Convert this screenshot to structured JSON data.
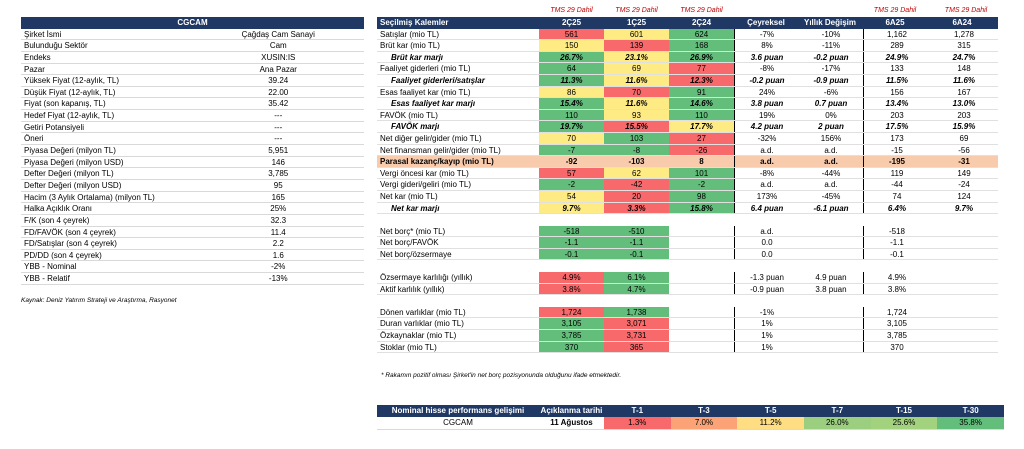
{
  "left": {
    "title": "CGCAM",
    "rows": [
      [
        "Şirket İsmi",
        "Çağdaş Cam Sanayi"
      ],
      [
        "Bulunduğu Sektör",
        "Cam"
      ],
      [
        "Endeks",
        "XUSIN:IS"
      ],
      [
        "Pazar",
        "Ana Pazar"
      ],
      [
        "Yüksek Fiyat (12-aylık, TL)",
        "39.24"
      ],
      [
        "Düşük Fiyat (12-aylık, TL)",
        "22.00"
      ],
      [
        "Fiyat (son kapanış, TL)",
        "35.42"
      ],
      [
        "Hedef Fiyat (12-aylık, TL)",
        "---"
      ],
      [
        "Getiri Potansiyeli",
        "---"
      ],
      [
        "Öneri",
        "---"
      ],
      [
        "Piyasa Değeri (milyon TL)",
        "5,951"
      ],
      [
        "Piyasa Değeri (milyon USD)",
        "146"
      ],
      [
        "Defter Değeri (milyon TL)",
        "3,785"
      ],
      [
        "Defter Değeri (milyon USD)",
        "95"
      ],
      [
        "Hacim (3 Aylık Ortalama) (milyon TL)",
        "165"
      ],
      [
        "Halka Açıklık Oranı",
        "25%"
      ],
      [
        "F/K (son 4 çeyrek)",
        "32.3"
      ],
      [
        "FD/FAVÖK (son 4 çeyrek)",
        "11.4"
      ],
      [
        "FD/Satışlar (son 4 çeyrek)",
        "2.2"
      ],
      [
        "PD/DD (son 4 çeyrek)",
        "1.6"
      ],
      [
        "YBB - Nominal",
        "-2%"
      ],
      [
        "YBB - Relatif",
        "-13%"
      ]
    ],
    "source": "Kaynak: Deniz Yatırım Strateji ve Araştırma, Rasyonet"
  },
  "tms_label": "TMS 29 Dahil",
  "right": {
    "headers": [
      "Seçilmiş Kalemler",
      "2Ç25",
      "1Ç25",
      "2Ç24",
      "Çeyreksel Değişim",
      "Yıllık Değişim",
      "6A25",
      "6A24"
    ],
    "rows": [
      {
        "c": [
          "Satışlar (mio TL)",
          "561",
          "601",
          "624",
          "-7%",
          "-10%",
          "1,162",
          "1,278"
        ],
        "col": [
          "rd",
          "y",
          "g"
        ]
      },
      {
        "c": [
          "Brüt kar (mio TL)",
          "150",
          "139",
          "168",
          "8%",
          "-11%",
          "289",
          "315"
        ],
        "col": [
          "y",
          "rd",
          "g"
        ]
      },
      {
        "c": [
          "Brüt kar marjı",
          "26.7%",
          "23.1%",
          "26.9%",
          "3.6 puan",
          "-0.2 puan",
          "24.9%",
          "24.7%"
        ],
        "col": [
          "g",
          "y",
          "g"
        ],
        "style": "bi-ind"
      },
      {
        "c": [
          "Faaliyet giderleri (mio TL)",
          "64",
          "69",
          "77",
          "-8%",
          "-17%",
          "133",
          "148"
        ],
        "col": [
          "g",
          "y",
          "rd"
        ]
      },
      {
        "c": [
          "Faaliyet giderleri/satışlar",
          "11.3%",
          "11.6%",
          "12.3%",
          "-0.2 puan",
          "-0.9 puan",
          "11.5%",
          "11.6%"
        ],
        "col": [
          "g",
          "y",
          "rd"
        ],
        "style": "bi-ind"
      },
      {
        "c": [
          "Esas faaliyet kar (mio TL)",
          "86",
          "70",
          "91",
          "24%",
          "-6%",
          "156",
          "167"
        ],
        "col": [
          "y",
          "rd",
          "g"
        ]
      },
      {
        "c": [
          "Esas faaliyet kar marjı",
          "15.4%",
          "11.6%",
          "14.6%",
          "3.8 puan",
          "0.7 puan",
          "13.4%",
          "13.0%"
        ],
        "col": [
          "g",
          "y",
          "g"
        ],
        "style": "bi-ind"
      },
      {
        "c": [
          "FAVÖK (mio TL)",
          "110",
          "93",
          "110",
          "19%",
          "0%",
          "203",
          "203"
        ],
        "col": [
          "g",
          "y",
          "g"
        ]
      },
      {
        "c": [
          "FAVÖK marjı",
          "19.7%",
          "15.5%",
          "17.7%",
          "4.2 puan",
          "2 puan",
          "17.5%",
          "15.9%"
        ],
        "col": [
          "g",
          "rd",
          "y"
        ],
        "style": "bi-ind"
      },
      {
        "c": [
          "Net diğer gelir/gider (mio TL)",
          "70",
          "103",
          "27",
          "-32%",
          "156%",
          "173",
          "69"
        ],
        "col": [
          "y",
          "g",
          "rd"
        ]
      },
      {
        "c": [
          "Net finansman gelir/gider (mio TL)",
          "-7",
          "-8",
          "-26",
          "a.d.",
          "a.d.",
          "-15",
          "-56"
        ],
        "col": [
          "g",
          "g",
          "rd"
        ]
      },
      {
        "c": [
          "Parasal kazanç/kayıp (mio TL)",
          "-92",
          "-103",
          "8",
          "a.d.",
          "a.d.",
          "-195",
          "-31"
        ],
        "col": [
          "y",
          "rd",
          "g"
        ],
        "style": "hl"
      },
      {
        "c": [
          "Vergi öncesi kar (mio TL)",
          "57",
          "62",
          "101",
          "-8%",
          "-44%",
          "119",
          "149"
        ],
        "col": [
          "rd",
          "y",
          "g"
        ]
      },
      {
        "c": [
          "Vergi gideri/geliri (mio TL)",
          "-2",
          "-42",
          "-2",
          "a.d.",
          "a.d.",
          "-44",
          "-24"
        ],
        "col": [
          "g",
          "rd",
          "g"
        ]
      },
      {
        "c": [
          "Net kar (mio TL)",
          "54",
          "20",
          "98",
          "173%",
          "-45%",
          "74",
          "124"
        ],
        "col": [
          "y",
          "rd",
          "g"
        ]
      },
      {
        "c": [
          "Net kar marjı",
          "9.7%",
          "3.3%",
          "15.8%",
          "6.4 puan",
          "-6.1 puan",
          "6.4%",
          "9.7%"
        ],
        "col": [
          "y",
          "rd",
          "g"
        ],
        "style": "bi-ind"
      },
      {
        "blank": true
      },
      {
        "c": [
          "Net borç* (mio TL)",
          "-518",
          "-510",
          "",
          "a.d.",
          "",
          "-518",
          ""
        ],
        "col": [
          "g",
          "g",
          ""
        ]
      },
      {
        "c": [
          "Net borç/FAVÖK",
          "-1.1",
          "-1.1",
          "",
          "0.0",
          "",
          "-1.1",
          ""
        ],
        "col": [
          "g",
          "g",
          ""
        ]
      },
      {
        "c": [
          "Net borç/özsermaye",
          "-0.1",
          "-0.1",
          "",
          "0.0",
          "",
          "-0.1",
          ""
        ],
        "col": [
          "g",
          "g",
          ""
        ]
      },
      {
        "blank": true
      },
      {
        "c": [
          "Özsermaye karlılığı (yıllık)",
          "4.9%",
          "6.1%",
          "",
          "-1.3 puan",
          "4.9 puan",
          "4.9%",
          ""
        ],
        "col": [
          "rd",
          "g",
          ""
        ]
      },
      {
        "c": [
          "Aktif karlılık (yıllık)",
          "3.8%",
          "4.7%",
          "",
          "-0.9 puan",
          "3.8 puan",
          "3.8%",
          ""
        ],
        "col": [
          "rd",
          "g",
          ""
        ]
      },
      {
        "blank": true
      },
      {
        "c": [
          "Dönen varlıklar (mio TL)",
          "1,724",
          "1,738",
          "",
          "-1%",
          "",
          "1,724",
          ""
        ],
        "col": [
          "rd",
          "g",
          ""
        ]
      },
      {
        "c": [
          "Duran varlıklar (mio TL)",
          "3,105",
          "3,071",
          "",
          "1%",
          "",
          "3,105",
          ""
        ],
        "col": [
          "g",
          "rd",
          ""
        ]
      },
      {
        "c": [
          "Özkaynaklar (mio TL)",
          "3,785",
          "3,731",
          "",
          "1%",
          "",
          "3,785",
          ""
        ],
        "col": [
          "g",
          "rd",
          ""
        ]
      },
      {
        "c": [
          "Stoklar (mio TL)",
          "370",
          "365",
          "",
          "1%",
          "",
          "370",
          ""
        ],
        "col": [
          "g",
          "rd",
          ""
        ]
      }
    ],
    "note": "* Rakamın pozitif olması Şirket'in net borç pozisyonunda olduğunu ifade etmektedir."
  },
  "perf": {
    "headers": [
      "Nominal hisse performans gelişimi",
      "Açıklanma tarihi",
      "T-1",
      "T-3",
      "T-5",
      "T-7",
      "T-15",
      "T-30"
    ],
    "row": [
      "CGCAM",
      "11 Ağustos",
      "1.3%",
      "7.0%",
      "11.2%",
      "26.0%",
      "25.6%",
      "35.8%"
    ],
    "colors": [
      "#f8696b",
      "#fba276",
      "#ffdd82",
      "#9bcf7f",
      "#a3d27f",
      "#63be7b"
    ]
  }
}
